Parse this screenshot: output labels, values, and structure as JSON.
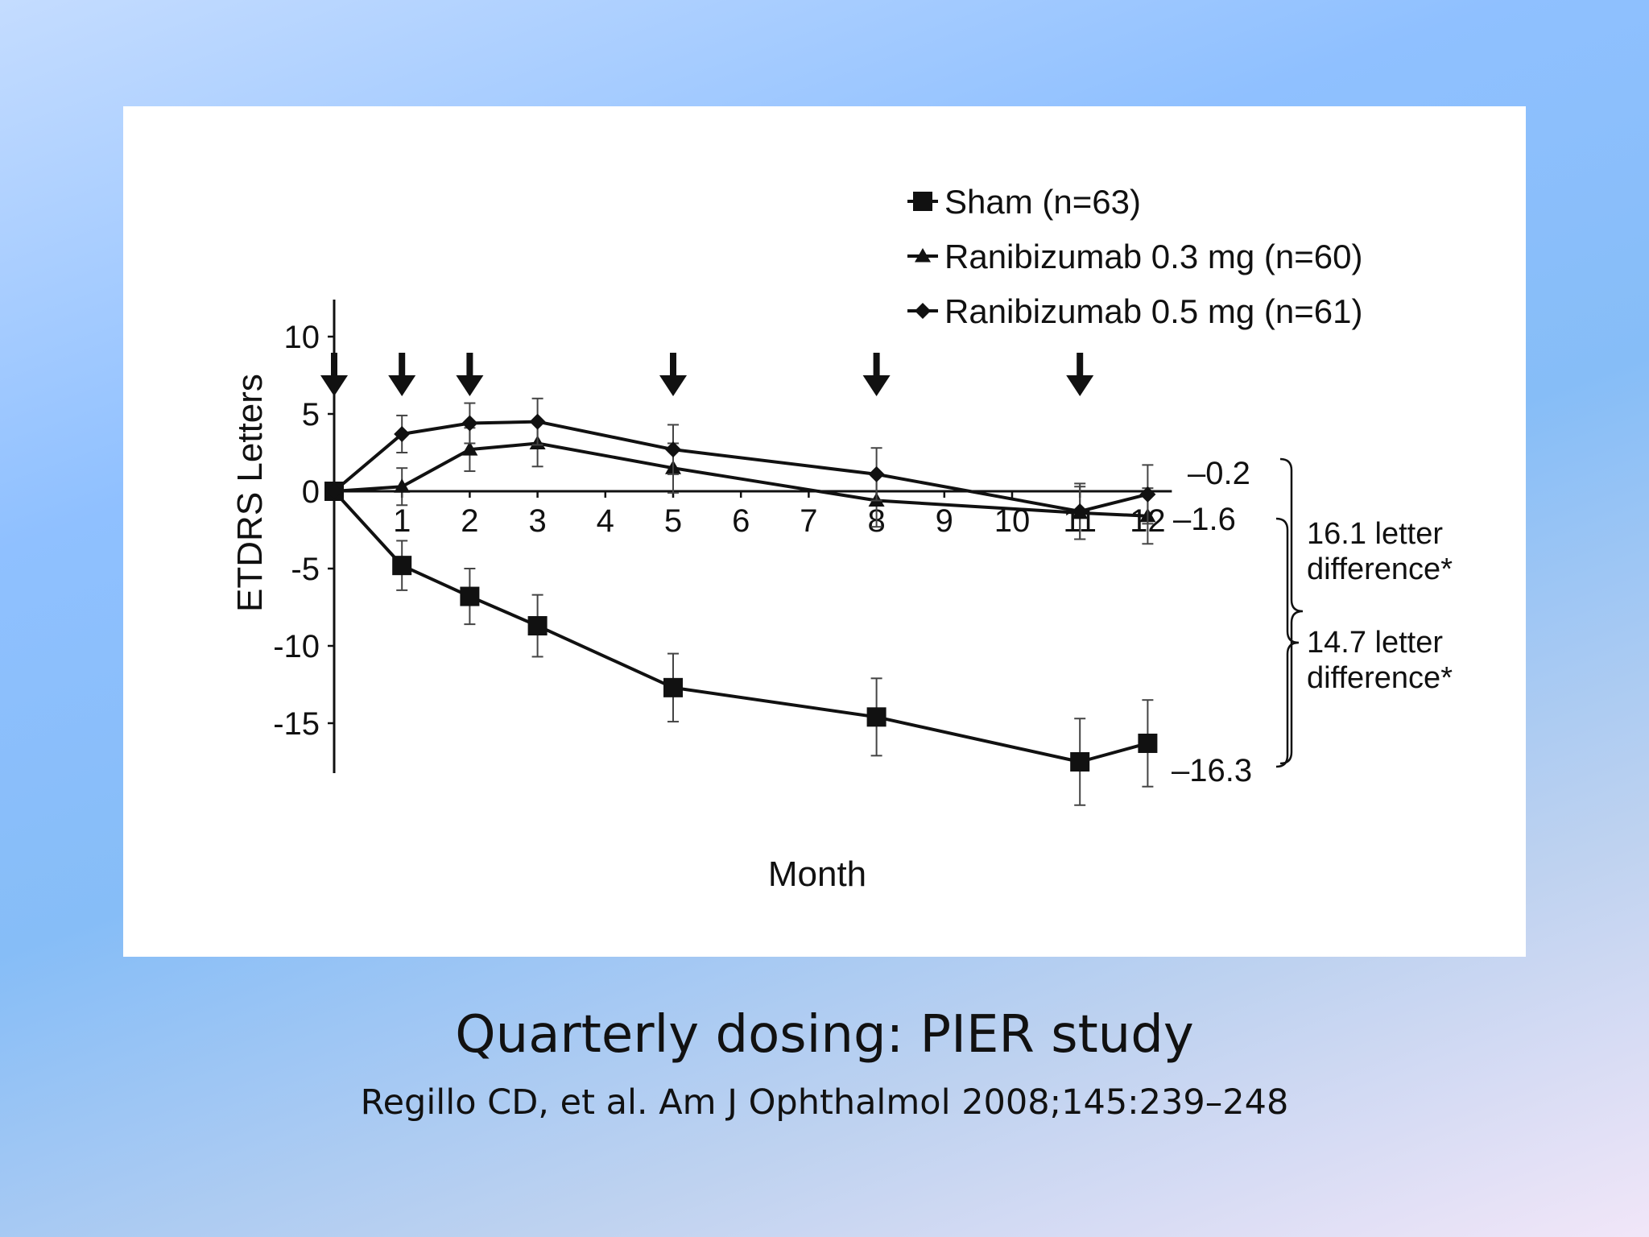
{
  "slide": {
    "title": "Quarterly dosing: PIER study",
    "citation": "Regillo CD, et al. Am J Ophthalmol 2008;145:239–248"
  },
  "chart_data": {
    "type": "line",
    "xlabel": "Month",
    "ylabel": "ETDRS Letters",
    "xlim": [
      0,
      12
    ],
    "ylim": [
      -18,
      12
    ],
    "x_ticks": [
      "1",
      "2",
      "3",
      "4",
      "5",
      "6",
      "7",
      "8",
      "9",
      "10",
      "11",
      "12"
    ],
    "y_ticks": [
      "10",
      "5",
      "0",
      "-5",
      "-10",
      "-15"
    ],
    "y_tick_values": [
      10,
      5,
      0,
      -5,
      -10,
      -15
    ],
    "legend_position": "top-right",
    "dosing_arrows_months": [
      0,
      1,
      2,
      5,
      8,
      11
    ],
    "series": [
      {
        "name": "Sham (n=63)",
        "marker": "square",
        "x": [
          0,
          1,
          2,
          3,
          5,
          8,
          11,
          12
        ],
        "y": [
          0,
          -4.8,
          -6.8,
          -8.7,
          -12.7,
          -14.6,
          -17.5,
          -16.3
        ],
        "err": [
          0,
          1.6,
          1.8,
          2.0,
          2.2,
          2.5,
          2.8,
          2.8
        ]
      },
      {
        "name": "Ranibizumab 0.3 mg (n=60)",
        "marker": "triangle",
        "x": [
          0,
          1,
          2,
          3,
          5,
          8,
          11,
          12
        ],
        "y": [
          0,
          0.3,
          2.7,
          3.1,
          1.5,
          -0.6,
          -1.4,
          -1.6
        ],
        "err": [
          0,
          1.2,
          1.4,
          1.5,
          1.6,
          1.7,
          1.7,
          1.8
        ]
      },
      {
        "name": "Ranibizumab 0.5 mg (n=61)",
        "marker": "diamond",
        "x": [
          0,
          1,
          2,
          3,
          5,
          8,
          11,
          12
        ],
        "y": [
          0,
          3.7,
          4.4,
          4.5,
          2.7,
          1.1,
          -1.3,
          -0.2
        ],
        "err": [
          0,
          1.2,
          1.3,
          1.5,
          1.6,
          1.7,
          1.8,
          1.9
        ]
      }
    ],
    "end_labels": [
      "–0.2",
      "–1.6",
      "–16.3"
    ],
    "annotations": [
      {
        "line1": "16.1 letter",
        "line2": "difference*"
      },
      {
        "line1": "14.7 letter",
        "line2": "difference*"
      }
    ]
  }
}
